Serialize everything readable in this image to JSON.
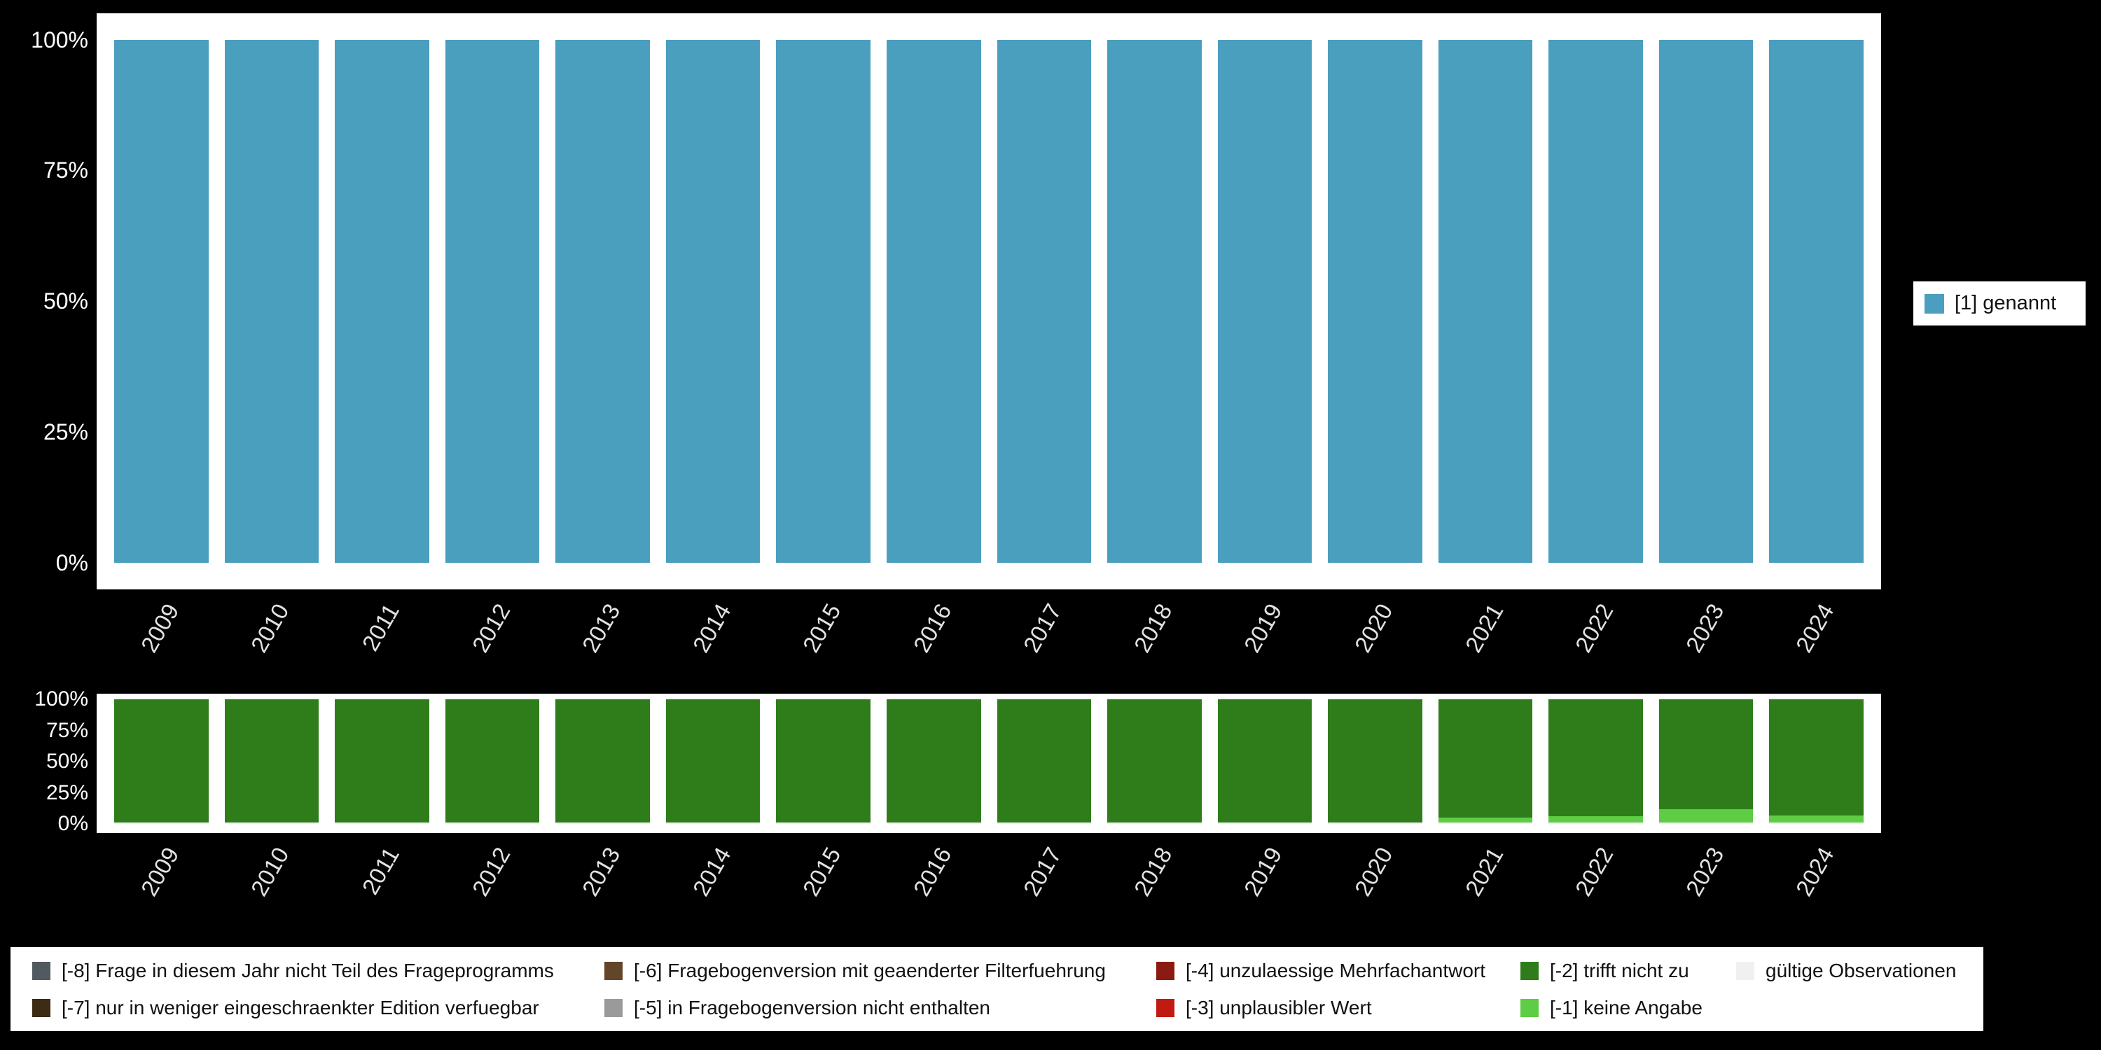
{
  "colors": {
    "background": "#000000",
    "panel": "#ffffff",
    "axis_text": "#ffffff",
    "tick_text": "#e2e2e2",
    "accent_teal": "#4a9fbf",
    "dark_green": "#2e7d1a",
    "light_green": "#5ecc44"
  },
  "chart_data": [
    {
      "id": "valid-values-by-year",
      "type": "bar",
      "stacked": true,
      "unit": "percent",
      "title": "",
      "categories": [
        "2009",
        "2010",
        "2011",
        "2012",
        "2013",
        "2014",
        "2015",
        "2016",
        "2017",
        "2018",
        "2019",
        "2020",
        "2021",
        "2022",
        "2023",
        "2024"
      ],
      "yticks": [
        "100%",
        "75%",
        "50%",
        "25%",
        "0%"
      ],
      "ylim": [
        0,
        100
      ],
      "grid": false,
      "legend_position": "right",
      "series": [
        {
          "name": "[1] genannt",
          "color": "#4a9fbf",
          "values": [
            100,
            100,
            100,
            100,
            100,
            100,
            100,
            100,
            100,
            100,
            100,
            100,
            100,
            100,
            100,
            100
          ]
        }
      ]
    },
    {
      "id": "missing-values-by-year",
      "type": "bar",
      "stacked": true,
      "unit": "percent",
      "title": "",
      "categories": [
        "2009",
        "2010",
        "2011",
        "2012",
        "2013",
        "2014",
        "2015",
        "2016",
        "2017",
        "2018",
        "2019",
        "2020",
        "2021",
        "2022",
        "2023",
        "2024"
      ],
      "yticks": [
        "100%",
        "75%",
        "50%",
        "25%",
        "0%"
      ],
      "ylim": [
        0,
        100
      ],
      "grid": false,
      "legend_position": "bottom",
      "series": [
        {
          "name": "gültige Observationen",
          "color": "#f0f0f0",
          "values": [
            1,
            1,
            1,
            1,
            1,
            1,
            1,
            1,
            1,
            1,
            1,
            1,
            1,
            1,
            1,
            1
          ]
        },
        {
          "name": "[-1] keine Angabe",
          "color": "#5ecc44",
          "values": [
            0,
            0,
            0,
            0,
            0,
            0,
            0,
            0,
            0,
            0,
            0,
            0,
            4,
            5,
            11,
            6
          ]
        },
        {
          "name": "[-2] trifft nicht zu",
          "color": "#2e7d1a",
          "values": [
            99,
            99,
            99,
            99,
            99,
            99,
            99,
            99,
            99,
            99,
            99,
            99,
            95,
            94,
            88,
            93
          ]
        }
      ]
    }
  ],
  "legend_right": {
    "items": [
      {
        "label": "[1] genannt",
        "color": "#4a9fbf"
      }
    ]
  },
  "legend_bottom": {
    "columns": [
      {
        "items": [
          {
            "label": "[-8] Frage in diesem Jahr nicht Teil des Frageprogramms",
            "color": "#515a5e"
          },
          {
            "label": "[-7] nur in weniger eingeschraenkter Edition verfuegbar",
            "color": "#3d2b13"
          }
        ]
      },
      {
        "items": [
          {
            "label": "[-6] Fragebogenversion mit geaenderter Filterfuehrung",
            "color": "#63452a"
          },
          {
            "label": "[-5] in Fragebogenversion nicht enthalten",
            "color": "#9a9a9a"
          }
        ]
      },
      {
        "items": [
          {
            "label": "[-4] unzulaessige Mehrfachantwort",
            "color": "#8b1a12"
          },
          {
            "label": "[-3] unplausibler Wert",
            "color": "#c11a12"
          }
        ]
      },
      {
        "items": [
          {
            "label": "[-2] trifft nicht zu",
            "color": "#2e7d1a"
          },
          {
            "label": "[-1] keine Angabe",
            "color": "#5ecc44"
          }
        ]
      },
      {
        "items": [
          {
            "label": "gültige Observationen",
            "color": "#f0f0f0"
          }
        ]
      }
    ]
  }
}
